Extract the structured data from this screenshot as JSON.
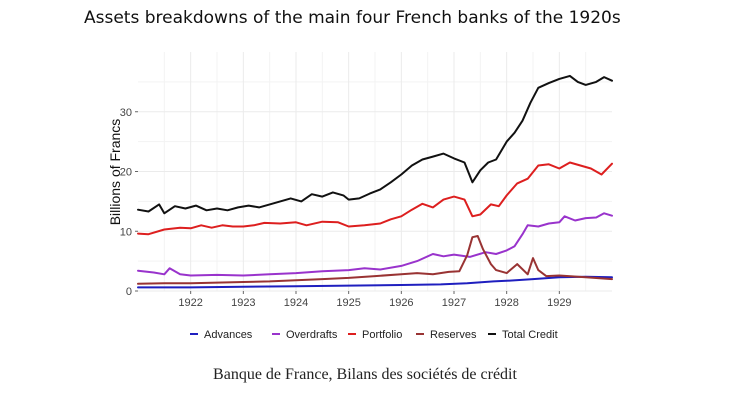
{
  "title": "Assets breakdowns of the main four French banks of the 1920s",
  "caption": "Banque de France, Bilans des sociétés de crédit",
  "colors": {
    "advances": "#1f1fbf",
    "overdrafts": "#9933cc",
    "portfolio": "#dd1f1f",
    "reserves": "#993333",
    "total_credit": "#111111",
    "grid": "#ebebeb"
  },
  "chart_data": {
    "type": "line",
    "title": "Assets breakdowns of the main four French banks of the 1920s",
    "xlabel": "",
    "ylabel": "Billions of Francs",
    "xlim": [
      1921.0,
      1930.0
    ],
    "ylim": [
      0,
      40
    ],
    "x_ticks": [
      1922,
      1923,
      1924,
      1925,
      1926,
      1927,
      1928,
      1929
    ],
    "x_tick_labels": [
      "1922",
      "1923",
      "1924",
      "1925",
      "1926",
      "1927",
      "1928",
      "1929"
    ],
    "y_ticks": [
      0,
      10,
      20,
      30
    ],
    "y_tick_labels": [
      "0",
      "10",
      "20",
      "30"
    ],
    "grid": true,
    "legend_position": "bottom",
    "series": [
      {
        "key": "advances",
        "name": "Advances",
        "x": [
          1921.0,
          1922.0,
          1923.0,
          1924.0,
          1925.0,
          1926.0,
          1926.75,
          1927.25,
          1927.75,
          1928.0,
          1928.5,
          1929.0,
          1929.5,
          1930.0
        ],
        "values": [
          0.6,
          0.6,
          0.7,
          0.8,
          0.9,
          1.0,
          1.1,
          1.3,
          1.6,
          1.7,
          2.0,
          2.3,
          2.4,
          2.3
        ]
      },
      {
        "key": "overdrafts",
        "name": "Overdrafts",
        "x": [
          1921.0,
          1921.3,
          1921.5,
          1921.6,
          1921.8,
          1922.0,
          1922.5,
          1923.0,
          1923.5,
          1924.0,
          1924.5,
          1925.0,
          1925.3,
          1925.6,
          1926.0,
          1926.3,
          1926.6,
          1926.8,
          1927.0,
          1927.3,
          1927.6,
          1927.8,
          1928.0,
          1928.15,
          1928.3,
          1928.4,
          1928.6,
          1928.8,
          1929.0,
          1929.1,
          1929.3,
          1929.5,
          1929.7,
          1929.85,
          1930.0
        ],
        "values": [
          3.4,
          3.1,
          2.8,
          3.8,
          2.8,
          2.6,
          2.7,
          2.6,
          2.8,
          3.0,
          3.3,
          3.5,
          3.8,
          3.6,
          4.2,
          5.0,
          6.2,
          5.8,
          6.1,
          5.7,
          6.5,
          6.2,
          6.8,
          7.5,
          9.5,
          11.0,
          10.8,
          11.3,
          11.5,
          12.5,
          11.8,
          12.2,
          12.3,
          13.0,
          12.6
        ]
      },
      {
        "key": "portfolio",
        "name": "Portfolio",
        "x": [
          1921.0,
          1921.2,
          1921.5,
          1921.8,
          1922.0,
          1922.2,
          1922.4,
          1922.6,
          1922.8,
          1923.0,
          1923.2,
          1923.4,
          1923.7,
          1924.0,
          1924.2,
          1924.5,
          1924.8,
          1925.0,
          1925.3,
          1925.6,
          1925.8,
          1926.0,
          1926.2,
          1926.4,
          1926.6,
          1926.8,
          1927.0,
          1927.2,
          1927.35,
          1927.5,
          1927.7,
          1927.85,
          1928.0,
          1928.2,
          1928.4,
          1928.6,
          1928.8,
          1929.0,
          1929.2,
          1929.4,
          1929.6,
          1929.8,
          1930.0
        ],
        "values": [
          9.6,
          9.5,
          10.3,
          10.6,
          10.5,
          11.0,
          10.6,
          11.0,
          10.8,
          10.8,
          11.0,
          11.4,
          11.3,
          11.5,
          11.0,
          11.6,
          11.5,
          10.8,
          11.0,
          11.3,
          12.0,
          12.5,
          13.6,
          14.6,
          14.0,
          15.3,
          15.8,
          15.3,
          12.5,
          12.8,
          14.5,
          14.2,
          16.0,
          18.0,
          18.8,
          21.0,
          21.2,
          20.5,
          21.5,
          21.0,
          20.5,
          19.5,
          21.3
        ]
      },
      {
        "key": "reserves",
        "name": "Reserves",
        "x": [
          1921.0,
          1921.5,
          1922.0,
          1922.5,
          1923.0,
          1923.5,
          1924.0,
          1924.5,
          1925.0,
          1925.5,
          1926.0,
          1926.3,
          1926.6,
          1926.9,
          1927.1,
          1927.25,
          1927.35,
          1927.45,
          1927.55,
          1927.7,
          1927.8,
          1928.0,
          1928.2,
          1928.4,
          1928.5,
          1928.6,
          1928.75,
          1929.0,
          1929.5,
          1930.0
        ],
        "values": [
          1.2,
          1.3,
          1.3,
          1.4,
          1.5,
          1.6,
          1.8,
          2.0,
          2.2,
          2.5,
          2.8,
          3.0,
          2.8,
          3.2,
          3.3,
          6.0,
          9.0,
          9.2,
          7.0,
          4.5,
          3.5,
          3.0,
          4.5,
          2.8,
          5.5,
          3.5,
          2.5,
          2.6,
          2.3,
          2.0
        ]
      },
      {
        "key": "total_credit",
        "name": "Total Credit",
        "x": [
          1921.0,
          1921.2,
          1921.4,
          1921.5,
          1921.7,
          1921.9,
          1922.1,
          1922.3,
          1922.5,
          1922.7,
          1922.9,
          1923.1,
          1923.3,
          1923.5,
          1923.7,
          1923.9,
          1924.1,
          1924.3,
          1924.5,
          1924.7,
          1924.9,
          1925.0,
          1925.2,
          1925.4,
          1925.6,
          1925.8,
          1926.0,
          1926.2,
          1926.4,
          1926.6,
          1926.8,
          1927.0,
          1927.2,
          1927.35,
          1927.5,
          1927.65,
          1927.8,
          1928.0,
          1928.15,
          1928.3,
          1928.45,
          1928.6,
          1928.8,
          1929.0,
          1929.2,
          1929.35,
          1929.5,
          1929.7,
          1929.85,
          1930.0
        ],
        "values": [
          13.6,
          13.3,
          14.5,
          13.0,
          14.2,
          13.8,
          14.3,
          13.5,
          13.8,
          13.5,
          14.0,
          14.3,
          14.0,
          14.5,
          15.0,
          15.5,
          15.0,
          16.2,
          15.8,
          16.5,
          16.0,
          15.3,
          15.5,
          16.3,
          17.0,
          18.2,
          19.5,
          21.0,
          22.0,
          22.5,
          23.0,
          22.2,
          21.5,
          18.2,
          20.2,
          21.5,
          22.0,
          25.0,
          26.5,
          28.5,
          31.5,
          34.0,
          34.8,
          35.5,
          36.0,
          35.0,
          34.5,
          35.0,
          35.8,
          35.2
        ]
      }
    ]
  }
}
